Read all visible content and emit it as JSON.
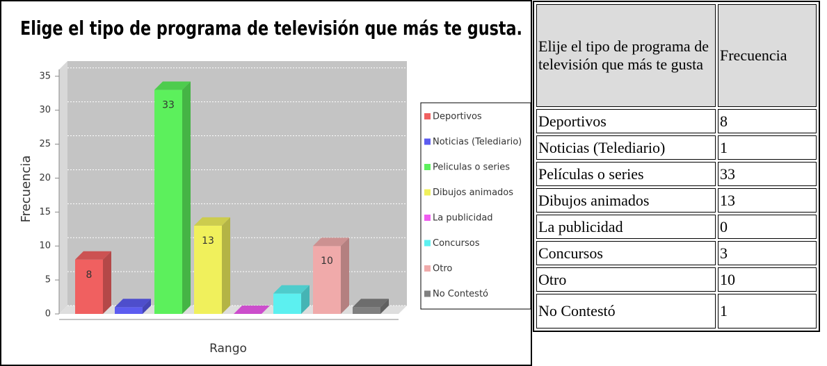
{
  "chart_data": {
    "type": "bar3d",
    "title": "Elige el tipo de programa de televisión que más te gusta.",
    "ylabel": "Frecuencia",
    "xlabel": "Rango",
    "ylim": [
      0,
      36
    ],
    "yticks": [
      0,
      5,
      10,
      15,
      20,
      25,
      30,
      35
    ],
    "grid": true,
    "legend": "right",
    "series": [
      {
        "name": "Deportivos",
        "color": "#f06060",
        "values": [
          8
        ],
        "value_labels": [
          "8"
        ]
      },
      {
        "name": "Noticias (Telediario)",
        "color": "#5c5cf0",
        "values": [
          1
        ]
      },
      {
        "name": "Peliculas o series",
        "color": "#5cf05c",
        "values": [
          33
        ],
        "value_labels": [
          "33"
        ]
      },
      {
        "name": "Dibujos animados",
        "color": "#f0f05c",
        "values": [
          13
        ],
        "value_labels": [
          "13"
        ]
      },
      {
        "name": "La publicidad",
        "color": "#f05cf0",
        "values": [
          0
        ]
      },
      {
        "name": "Concursos",
        "color": "#5cf0f0",
        "values": [
          3
        ]
      },
      {
        "name": "Otro",
        "color": "#f0aaaa",
        "values": [
          10
        ],
        "value_labels": [
          "10"
        ]
      },
      {
        "name": "No Contestó",
        "color": "#808080",
        "values": [
          1
        ]
      }
    ]
  },
  "table": {
    "header": [
      "Elije el tipo de programa de televisión que más te gusta",
      "Frecuencia"
    ],
    "rows": [
      [
        "Deportivos",
        "8"
      ],
      [
        "Noticias (Telediario)",
        "1"
      ],
      [
        "Películas o series",
        "33"
      ],
      [
        "Dibujos animados",
        "13"
      ],
      [
        "La publicidad",
        "0"
      ],
      [
        "Concursos",
        "3"
      ],
      [
        "Otro",
        "10"
      ],
      [
        "No Contestó",
        "1"
      ]
    ]
  }
}
